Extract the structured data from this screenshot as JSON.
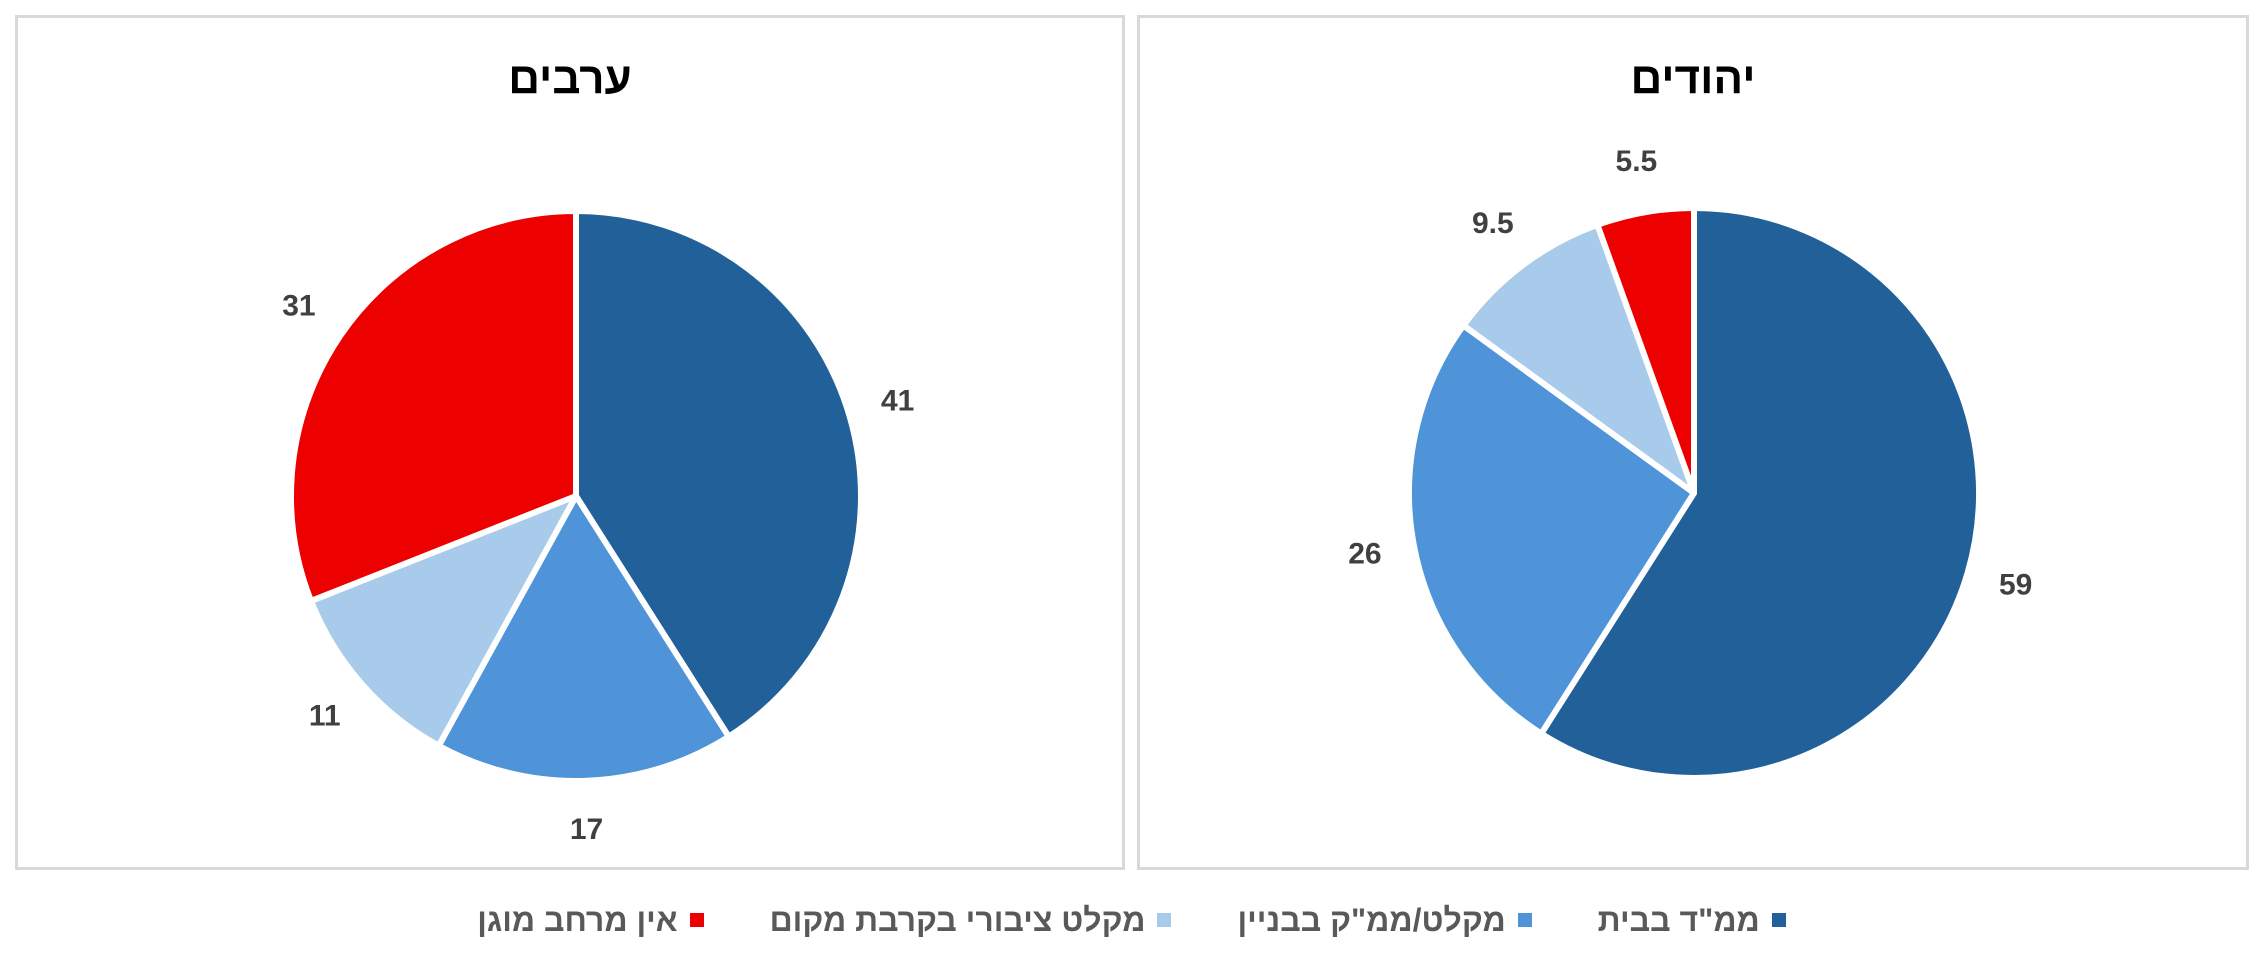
{
  "chart_data": [
    {
      "type": "pie",
      "title": "ערבים",
      "categories": [
        "ממ\"ד בבית",
        "מקלט/ממ\"ק בבניין",
        "מקלט ציבורי בקרבת מקום",
        "אין מרחב מוגן"
      ],
      "values": [
        41,
        17,
        11,
        31
      ],
      "data_labels": [
        "41",
        "17",
        "11",
        "31"
      ],
      "colors": [
        "#22609a",
        "#4f94d8",
        "#a8cbec",
        "#ec0000"
      ]
    },
    {
      "type": "pie",
      "title": "יהודים",
      "categories": [
        "ממ\"ד בבית",
        "מקלט/ממ\"ק בבניין",
        "מקלט ציבורי בקרבת מקום",
        "אין מרחב מוגן"
      ],
      "values": [
        59,
        26,
        9.5,
        5.5
      ],
      "data_labels": [
        "59",
        "26",
        "9.5",
        "5.5"
      ],
      "colors": [
        "#22609a",
        "#4f94d8",
        "#a8cbec",
        "#ec0000"
      ]
    }
  ],
  "legend": {
    "placement": "bottom",
    "items": [
      {
        "label": "ממ\"ד בבית",
        "color": "#22609a"
      },
      {
        "label": "מקלט/ממ\"ק בבניין",
        "color": "#4f94d8"
      },
      {
        "label": "מקלט ציבורי בקרבת מקום",
        "color": "#a8cbec"
      },
      {
        "label": "אין מרחב מוגן",
        "color": "#ec0000"
      }
    ]
  }
}
